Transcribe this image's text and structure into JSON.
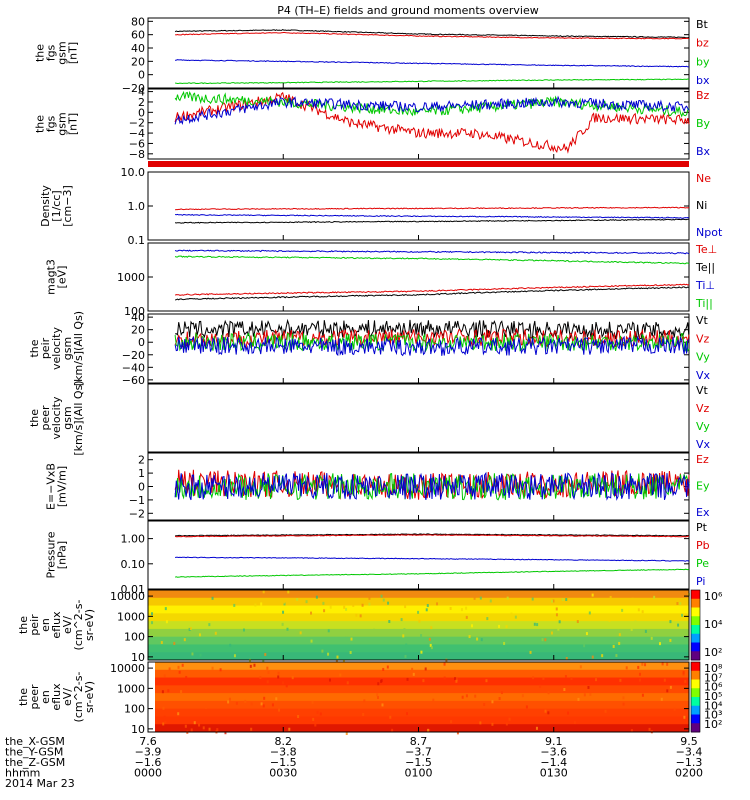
{
  "title": "P4 (TH–E) fields and ground moments overview",
  "colors": {
    "black": "#000000",
    "red": "#e00000",
    "green": "#00c800",
    "blue": "#0000d0"
  },
  "panels": [
    {
      "id": "fgs",
      "ylabel": [
        "the",
        "fgs",
        "gsm",
        "[nT]"
      ],
      "ylim": [
        -20,
        85
      ],
      "yticks": [
        "80",
        "60",
        "40",
        "20",
        "0",
        "−20"
      ],
      "tickvals": [
        80,
        60,
        40,
        20,
        0,
        -20
      ],
      "legend": [
        {
          "text": "Bt",
          "color": "black"
        },
        {
          "text": "bz",
          "color": "red"
        },
        {
          "text": "by",
          "color": "green"
        },
        {
          "text": "bx",
          "color": "blue"
        }
      ]
    },
    {
      "id": "fgs_dtrend",
      "ylabel": [
        "the",
        "fgs",
        "gsm",
        "[nT]"
      ],
      "ylim": [
        -9,
        4.5
      ],
      "yticks": [
        "4",
        "2",
        "0",
        "−2",
        "−4",
        "−6",
        "−8"
      ],
      "tickvals": [
        4,
        2,
        0,
        -2,
        -4,
        -6,
        -8
      ],
      "legend": [
        {
          "text": "Bz",
          "color": "red"
        },
        {
          "text": "By",
          "color": "green"
        },
        {
          "text": "Bx",
          "color": "blue"
        }
      ]
    },
    {
      "id": "density",
      "ylabel": [
        "Density",
        "[1/cc]",
        "[cm−3]"
      ],
      "log": true,
      "ylim": [
        0.1,
        10
      ],
      "yticks": [
        "10.0",
        "1.0",
        "0.1"
      ],
      "tickvals": [
        10,
        1,
        0.1
      ],
      "legend": [
        {
          "text": "Ne",
          "color": "red"
        },
        {
          "text": "Ni",
          "color": "black"
        },
        {
          "text": "Npot",
          "color": "blue"
        }
      ]
    },
    {
      "id": "temp",
      "ylabel": [
        "magt3",
        "[eV]"
      ],
      "log": true,
      "ylim": [
        100,
        10000
      ],
      "yticks": [
        "1000",
        "100"
      ],
      "tickvals": [
        1000,
        100
      ],
      "legend": [
        {
          "text": "Te⊥",
          "color": "red"
        },
        {
          "text": "Te||",
          "color": "black"
        },
        {
          "text": "Ti⊥",
          "color": "blue"
        },
        {
          "text": "Ti||",
          "color": "green"
        }
      ]
    },
    {
      "id": "peir_v",
      "ylabel": [
        "the",
        "peir",
        "velocity",
        "gsm",
        "[km/s](All Qs)"
      ],
      "ylim": [
        -65,
        45
      ],
      "yticks": [
        "40",
        "20",
        "0",
        "−20",
        "−40",
        "−60"
      ],
      "tickvals": [
        40,
        20,
        0,
        -20,
        -40,
        -60
      ],
      "legend": [
        {
          "text": "Vt",
          "color": "black"
        },
        {
          "text": "Vz",
          "color": "red"
        },
        {
          "text": "Vy",
          "color": "green"
        },
        {
          "text": "Vx",
          "color": "blue"
        }
      ]
    },
    {
      "id": "peer_v",
      "ylabel": [
        "the",
        "peer",
        "velocity",
        "gsm",
        "[km/s](All Qs)"
      ],
      "ylim": [
        0,
        1
      ],
      "yticks": [],
      "tickvals": [],
      "legend": [
        {
          "text": "Vt",
          "color": "black"
        },
        {
          "text": "Vz",
          "color": "red"
        },
        {
          "text": "Vy",
          "color": "green"
        },
        {
          "text": "Vx",
          "color": "blue"
        }
      ]
    },
    {
      "id": "exb",
      "ylabel": [
        "E=−VxB",
        "[mV/m]"
      ],
      "ylim": [
        -2.5,
        2.5
      ],
      "yticks": [
        "2",
        "1",
        "0",
        "−1",
        "−2"
      ],
      "tickvals": [
        2,
        1,
        0,
        -1,
        -2
      ],
      "legend": [
        {
          "text": "Ez",
          "color": "red"
        },
        {
          "text": "Ey",
          "color": "green"
        },
        {
          "text": "Ex",
          "color": "blue"
        }
      ]
    },
    {
      "id": "pressure",
      "ylabel": [
        "Pressure",
        "[nPa]"
      ],
      "log": true,
      "ylim": [
        0.01,
        5
      ],
      "yticks": [
        "1.00",
        "0.10",
        "0.01"
      ],
      "tickvals": [
        1,
        0.1,
        0.01
      ],
      "legend": [
        {
          "text": "Pt",
          "color": "black"
        },
        {
          "text": "Pb",
          "color": "red"
        },
        {
          "text": "Pe",
          "color": "green"
        },
        {
          "text": "Pi",
          "color": "blue"
        }
      ]
    },
    {
      "id": "peir_spec",
      "ylabel": [
        "the",
        "peir",
        "en",
        "eflux",
        "eV/",
        "(cm^2-s-",
        "sr-eV)"
      ],
      "log": true,
      "ylim": [
        7,
        20000
      ],
      "yticks": [
        "10000",
        "1000",
        "100",
        "10"
      ],
      "tickvals": [
        10000,
        1000,
        100,
        10
      ],
      "colorbar": [
        "10⁶",
        "10⁴",
        "10²"
      ]
    },
    {
      "id": "peer_spec",
      "ylabel": [
        "the",
        "peer",
        "en",
        "eflux",
        "eV/",
        "(cm^2-s-",
        "sr-eV)"
      ],
      "log": true,
      "ylim": [
        7,
        20000
      ],
      "yticks": [
        "10000",
        "1000",
        "100",
        "10"
      ],
      "tickvals": [
        10000,
        1000,
        100,
        10
      ],
      "colorbar": [
        "10⁸",
        "10⁷",
        "10⁶",
        "10⁵",
        "10⁴",
        "10³",
        "10²"
      ]
    }
  ],
  "xaxis": {
    "rows": [
      {
        "label": "the_X-GSM",
        "values": [
          "7.6",
          "8.2",
          "8.7",
          "9.1",
          "9.5"
        ]
      },
      {
        "label": "the_Y-GSM",
        "values": [
          "−3.9",
          "−3.8",
          "−3.7",
          "−3.6",
          "−3.4"
        ]
      },
      {
        "label": "the_Z-GSM",
        "values": [
          "−1.6",
          "−1.5",
          "−1.5",
          "−1.4",
          "−1.3"
        ]
      },
      {
        "label": "hhmm",
        "values": [
          "0000",
          "0030",
          "0100",
          "0130",
          "0200"
        ]
      }
    ],
    "date": "2014 Mar 23"
  },
  "chart_data": {
    "type": "line",
    "x_unit": "hhmm",
    "x_range": [
      "0000",
      "0200"
    ],
    "series": [
      {
        "panel": "fgs",
        "name": "Bt",
        "points": [
          [
            0.1,
            65
          ],
          [
            0.5,
            67
          ],
          [
            1.0,
            61
          ],
          [
            1.5,
            58
          ],
          [
            2.0,
            56
          ]
        ]
      },
      {
        "panel": "fgs",
        "name": "bz",
        "points": [
          [
            0.1,
            60
          ],
          [
            0.5,
            63
          ],
          [
            1.0,
            58
          ],
          [
            1.5,
            55
          ],
          [
            2.0,
            54
          ]
        ]
      },
      {
        "panel": "fgs",
        "name": "bx",
        "points": [
          [
            0.1,
            22
          ],
          [
            0.5,
            20
          ],
          [
            1.0,
            17
          ],
          [
            1.5,
            14
          ],
          [
            2.0,
            12
          ]
        ]
      },
      {
        "panel": "fgs",
        "name": "by",
        "points": [
          [
            0.1,
            -13
          ],
          [
            0.5,
            -12
          ],
          [
            1.0,
            -10
          ],
          [
            1.5,
            -8
          ],
          [
            2.0,
            -7
          ]
        ]
      },
      {
        "panel": "fgs_dtrend",
        "name": "Bz",
        "points": [
          [
            0.1,
            -1
          ],
          [
            0.5,
            3
          ],
          [
            0.75,
            -2
          ],
          [
            1.0,
            -4
          ],
          [
            1.2,
            -4
          ],
          [
            1.55,
            -7
          ],
          [
            1.65,
            -1
          ],
          [
            2.0,
            -1.5
          ]
        ]
      },
      {
        "panel": "fgs_dtrend",
        "name": "By",
        "points": [
          [
            0.1,
            3
          ],
          [
            0.5,
            2
          ],
          [
            1.0,
            0
          ],
          [
            1.5,
            2
          ],
          [
            2.0,
            0
          ]
        ]
      },
      {
        "panel": "fgs_dtrend",
        "name": "Bx",
        "points": [
          [
            0.1,
            -1.5
          ],
          [
            0.5,
            2
          ],
          [
            1.0,
            1
          ],
          [
            1.5,
            2
          ],
          [
            2.0,
            1
          ]
        ]
      },
      {
        "panel": "density",
        "name": "Ne",
        "points": [
          [
            0.1,
            0.8
          ],
          [
            1.0,
            0.85
          ],
          [
            2.0,
            0.9
          ]
        ]
      },
      {
        "panel": "density",
        "name": "Npot",
        "points": [
          [
            0.1,
            0.55
          ],
          [
            1.0,
            0.5
          ],
          [
            2.0,
            0.45
          ]
        ]
      },
      {
        "panel": "density",
        "name": "Ni",
        "points": [
          [
            0.1,
            0.32
          ],
          [
            1.0,
            0.35
          ],
          [
            2.0,
            0.4
          ]
        ]
      },
      {
        "panel": "temp",
        "name": "Ti⊥",
        "points": [
          [
            0.1,
            6000
          ],
          [
            1.0,
            5500
          ],
          [
            2.0,
            5000
          ]
        ]
      },
      {
        "panel": "temp",
        "name": "Ti||",
        "points": [
          [
            0.1,
            4000
          ],
          [
            1.0,
            3500
          ],
          [
            1.5,
            3000
          ],
          [
            2.0,
            2500
          ]
        ]
      },
      {
        "panel": "temp",
        "name": "Te⊥",
        "points": [
          [
            0.1,
            300
          ],
          [
            1.0,
            380
          ],
          [
            2.0,
            600
          ]
        ]
      },
      {
        "panel": "temp",
        "name": "Te||",
        "points": [
          [
            0.1,
            220
          ],
          [
            1.0,
            300
          ],
          [
            2.0,
            500
          ]
        ]
      },
      {
        "panel": "peir_v",
        "name": "Vt",
        "points": [
          [
            0.1,
            20
          ],
          [
            1.0,
            22
          ],
          [
            2.0,
            18
          ]
        ]
      },
      {
        "panel": "peir_v",
        "name": "Vz",
        "points": [
          [
            0.1,
            5
          ],
          [
            1.0,
            8
          ],
          [
            2.0,
            5
          ]
        ]
      },
      {
        "panel": "peir_v",
        "name": "Vy",
        "points": [
          [
            0.1,
            0
          ],
          [
            1.0,
            0
          ],
          [
            2.0,
            0
          ]
        ]
      },
      {
        "panel": "peir_v",
        "name": "Vx",
        "points": [
          [
            0.1,
            -5
          ],
          [
            1.0,
            -8
          ],
          [
            2.0,
            -5
          ]
        ]
      },
      {
        "panel": "exb",
        "name": "Ez",
        "points": [
          [
            0.1,
            0.3
          ],
          [
            1.0,
            0
          ],
          [
            2.0,
            0.3
          ]
        ]
      },
      {
        "panel": "exb",
        "name": "Ey",
        "points": [
          [
            0.1,
            0
          ],
          [
            1.0,
            0
          ],
          [
            2.0,
            0
          ]
        ]
      },
      {
        "panel": "exb",
        "name": "Ex",
        "points": [
          [
            0.1,
            0
          ],
          [
            1.0,
            0
          ],
          [
            2.0,
            0
          ]
        ]
      },
      {
        "panel": "pressure",
        "name": "Pt",
        "points": [
          [
            0.1,
            1.3
          ],
          [
            1.0,
            1.5
          ],
          [
            2.0,
            1.3
          ]
        ]
      },
      {
        "panel": "pressure",
        "name": "Pb",
        "points": [
          [
            0.1,
            1.2
          ],
          [
            1.0,
            1.4
          ],
          [
            2.0,
            1.2
          ]
        ]
      },
      {
        "panel": "pressure",
        "name": "Pi",
        "points": [
          [
            0.1,
            0.18
          ],
          [
            1.0,
            0.16
          ],
          [
            2.0,
            0.13
          ]
        ]
      },
      {
        "panel": "pressure",
        "name": "Pe",
        "points": [
          [
            0.1,
            0.03
          ],
          [
            1.0,
            0.04
          ],
          [
            2.0,
            0.06
          ]
        ]
      }
    ]
  }
}
